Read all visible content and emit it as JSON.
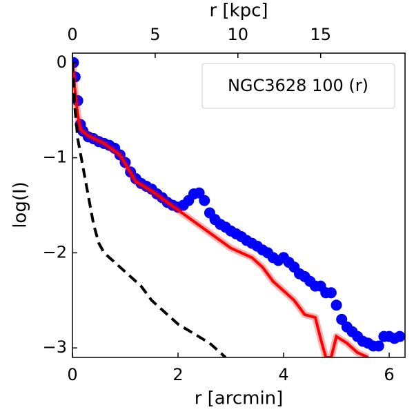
{
  "chart_data": {
    "type": "mixed",
    "xlabel": "r [arcmin]",
    "ylabel": "log(I)",
    "x2label": "r [kpc]",
    "legend_text": "NGC3628 100 (r)",
    "xlim": [
      0,
      6.3
    ],
    "ylim": [
      -3.1,
      0.1
    ],
    "x2lim": [
      0,
      20.1
    ],
    "xticks": [
      0,
      2,
      4,
      6
    ],
    "x2ticks": [
      0,
      5,
      10,
      15
    ],
    "yticks": [
      {
        "value": -3,
        "label": "−3"
      },
      {
        "value": -2,
        "label": "−2"
      },
      {
        "value": -1,
        "label": "−1"
      },
      0
    ],
    "series": [
      {
        "type": "scatter",
        "color": "#0000ff",
        "x": [
          0.02,
          0.05,
          0.1,
          0.15,
          0.2,
          0.3,
          0.4,
          0.5,
          0.6,
          0.7,
          0.8,
          0.9,
          1.0,
          1.1,
          1.2,
          1.3,
          1.4,
          1.5,
          1.6,
          1.7,
          1.8,
          1.9,
          2.0,
          2.1,
          2.2,
          2.3,
          2.4,
          2.5,
          2.6,
          2.7,
          2.8,
          2.9,
          3.0,
          3.1,
          3.2,
          3.3,
          3.4,
          3.5,
          3.6,
          3.7,
          3.8,
          3.9,
          4.0,
          4.1,
          4.2,
          4.3,
          4.4,
          4.5,
          4.6,
          4.7,
          4.8,
          4.9,
          5.0,
          5.1,
          5.2,
          5.3,
          5.4,
          5.5,
          5.6,
          5.7,
          5.8,
          5.9,
          6.0,
          6.1,
          6.2
        ],
        "values": [
          0.0,
          -0.15,
          -0.4,
          -0.65,
          -0.72,
          -0.78,
          -0.8,
          -0.83,
          -0.85,
          -0.87,
          -0.9,
          -0.97,
          -1.05,
          -1.15,
          -1.22,
          -1.27,
          -1.3,
          -1.33,
          -1.38,
          -1.42,
          -1.47,
          -1.5,
          -1.52,
          -1.5,
          -1.45,
          -1.38,
          -1.37,
          -1.45,
          -1.58,
          -1.65,
          -1.7,
          -1.73,
          -1.77,
          -1.8,
          -1.83,
          -1.87,
          -1.9,
          -1.93,
          -1.97,
          -2.0,
          -2.05,
          -2.08,
          -2.05,
          -2.1,
          -2.15,
          -2.22,
          -2.25,
          -2.3,
          -2.35,
          -2.35,
          -2.42,
          -2.42,
          -2.55,
          -2.7,
          -2.78,
          -2.83,
          -2.88,
          -2.93,
          -2.95,
          -2.98,
          -2.98,
          -2.88,
          -2.88,
          -2.9,
          -2.88
        ]
      },
      {
        "type": "line",
        "color": "#ff0000",
        "band": true,
        "x": [
          0,
          0.05,
          0.1,
          0.15,
          0.3,
          0.6,
          0.9,
          1.2,
          1.5,
          2.0,
          2.5,
          3.0,
          3.2,
          3.4,
          3.6,
          3.8,
          4.0,
          4.2,
          4.4,
          4.6,
          4.7,
          4.8,
          4.9,
          5.0,
          5.2,
          5.4,
          5.6
        ],
        "values": [
          0.0,
          -0.3,
          -0.55,
          -0.7,
          -0.77,
          -0.85,
          -0.97,
          -1.25,
          -1.35,
          -1.55,
          -1.75,
          -1.95,
          -2.0,
          -2.05,
          -2.15,
          -2.3,
          -2.4,
          -2.5,
          -2.65,
          -2.68,
          -2.9,
          -3.1,
          -3.1,
          -2.88,
          -2.95,
          -3.05,
          -3.1
        ]
      },
      {
        "type": "line",
        "color": "#000000",
        "dashed": true,
        "x": [
          0,
          0.05,
          0.1,
          0.2,
          0.3,
          0.4,
          0.5,
          0.6,
          0.8,
          1.0,
          1.3,
          1.5,
          1.8,
          2.0,
          2.3,
          2.6,
          2.8,
          2.9
        ],
        "values": [
          0.0,
          -0.5,
          -0.8,
          -1.1,
          -1.4,
          -1.7,
          -1.9,
          -2.0,
          -2.1,
          -2.2,
          -2.35,
          -2.5,
          -2.65,
          -2.75,
          -2.85,
          -2.95,
          -3.05,
          -3.1
        ]
      }
    ]
  }
}
